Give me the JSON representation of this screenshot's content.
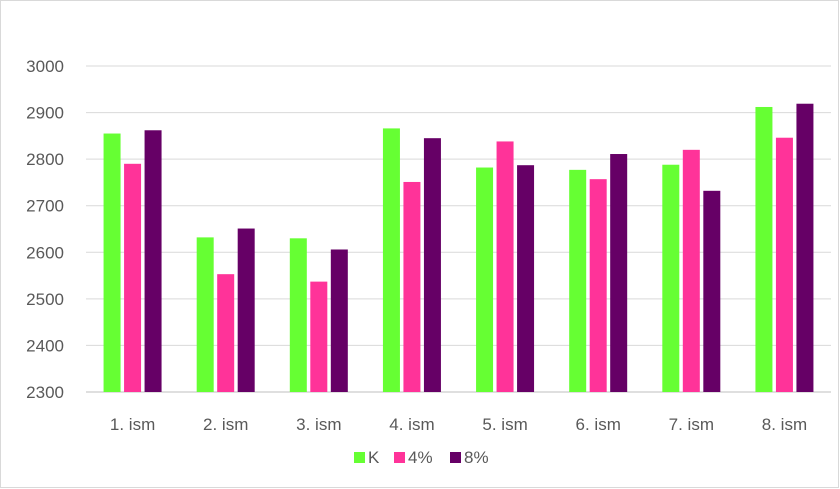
{
  "chart_data": {
    "type": "bar",
    "title": "",
    "xlabel": "",
    "ylabel": "",
    "categories": [
      "1. ism",
      "2. ism",
      "3. ism",
      "4. ism",
      "5. ism",
      "6. ism",
      "7. ism",
      "8. ism"
    ],
    "series": [
      {
        "name": "K",
        "color": "#66ff33",
        "values": [
          2855,
          2632,
          2630,
          2866,
          2782,
          2777,
          2788,
          2912
        ]
      },
      {
        "name": "4%",
        "color": "#ff3399",
        "values": [
          2790,
          2553,
          2537,
          2751,
          2838,
          2757,
          2820,
          2846
        ]
      },
      {
        "name": "8%",
        "color": "#660066",
        "values": [
          2862,
          2651,
          2606,
          2845,
          2787,
          2811,
          2732,
          2919
        ]
      }
    ],
    "ylim": [
      2300,
      3000
    ],
    "yticks": [
      "2300",
      "2400",
      "2500",
      "2600",
      "2700",
      "2800",
      "2900",
      "3000"
    ],
    "grid": true,
    "legend_position": "bottom"
  }
}
